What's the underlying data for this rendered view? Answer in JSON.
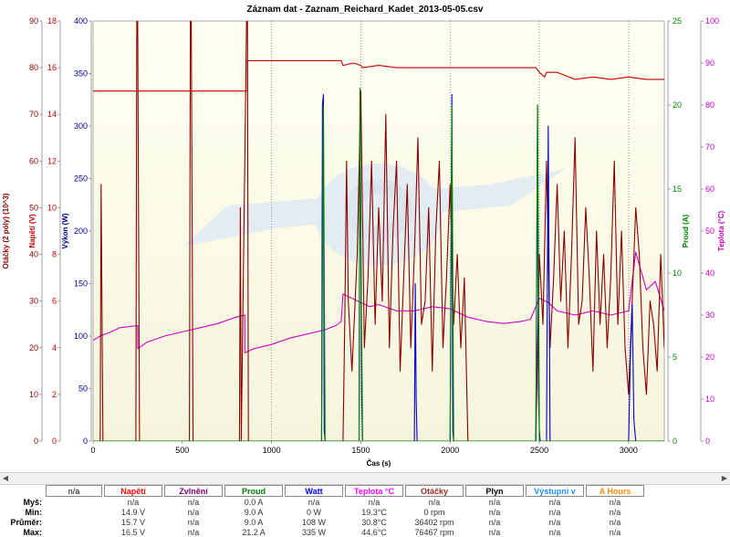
{
  "chart_data": {
    "type": "line",
    "title": "Záznam dat - Zaznam_Reichard_Kadet_2013-05-05.csv",
    "xlabel": "Čas (s)",
    "xlim": [
      0,
      3200
    ],
    "x_ticks": [
      "0",
      "500",
      "1000",
      "1500",
      "2000",
      "2500",
      "3000"
    ],
    "axes": [
      {
        "id": "otacky",
        "label": "Otáčky (2 póly) (10^3)",
        "range": [
          0,
          90
        ],
        "ticks": [
          "0",
          "10",
          "20",
          "30",
          "40",
          "50",
          "60",
          "70",
          "80",
          "90"
        ],
        "color": "#8b0000",
        "side": "left"
      },
      {
        "id": "napeti",
        "label": "Napětí (V)",
        "range": [
          0,
          18
        ],
        "ticks": [
          "0",
          "2",
          "4",
          "6",
          "8",
          "10",
          "12",
          "14",
          "16",
          "18"
        ],
        "color": "#c00000",
        "side": "left"
      },
      {
        "id": "vykon",
        "label": "Výkon (W)",
        "range": [
          0,
          400
        ],
        "ticks": [
          "0",
          "50",
          "100",
          "150",
          "200",
          "250",
          "300",
          "350",
          "400"
        ],
        "color": "#00008b",
        "side": "left"
      },
      {
        "id": "proud",
        "label": "Proud (A)",
        "range": [
          0,
          25
        ],
        "ticks": [
          "0",
          "5",
          "10",
          "15",
          "20",
          "25"
        ],
        "color": "#008000",
        "side": "right"
      },
      {
        "id": "teplota",
        "label": "Teplota (°C)",
        "range": [
          0,
          100
        ],
        "ticks": [
          "0",
          "10",
          "20",
          "30",
          "40",
          "50",
          "60",
          "70",
          "80",
          "90",
          "100"
        ],
        "color": "#c000c0",
        "side": "right"
      }
    ],
    "vertical_gridlines": [
      1000,
      1500,
      2000,
      2500,
      3000
    ],
    "series": [
      {
        "axis": "napeti",
        "color": "#c00000",
        "x": [
          0,
          50,
          50,
          865,
          865,
          880,
          1000,
          1100,
          1200,
          1300,
          1390,
          1400,
          1460,
          1500,
          1510,
          1600,
          1700,
          1800,
          1900,
          2000,
          2100,
          2200,
          2300,
          2400,
          2480,
          2500,
          2530,
          2540,
          2600,
          2700,
          2800,
          2900,
          3000,
          3100,
          3200
        ],
        "y": [
          15.0,
          15.0,
          15.0,
          15.0,
          16.3,
          16.3,
          16.3,
          16.3,
          16.3,
          16.3,
          16.3,
          16.1,
          16.2,
          16.1,
          16.0,
          16.1,
          16.0,
          16.0,
          16.0,
          16.0,
          16.0,
          16.0,
          16.0,
          16.0,
          16.0,
          15.8,
          15.6,
          15.8,
          15.8,
          15.5,
          15.6,
          15.5,
          15.6,
          15.5,
          15.5
        ]
      },
      {
        "axis": "teplota",
        "color": "#cc00cc",
        "x": [
          0,
          40,
          100,
          150,
          250,
          250,
          300,
          400,
          500,
          600,
          700,
          800,
          850,
          850,
          900,
          1000,
          1100,
          1200,
          1300,
          1330,
          1360,
          1390,
          1400,
          1450,
          1500,
          1550,
          1600,
          1700,
          1800,
          1900,
          2000,
          2100,
          2200,
          2300,
          2400,
          2450,
          2500,
          2550,
          2600,
          2700,
          2800,
          2900,
          3000,
          3040,
          3100,
          3150,
          3200
        ],
        "y": [
          24.0,
          25.0,
          26.0,
          27.0,
          27.5,
          22.0,
          23.5,
          25.0,
          26.0,
          27.0,
          28.0,
          29.5,
          30.0,
          21.0,
          22.0,
          23.0,
          24.5,
          25.5,
          26.5,
          27.0,
          27.5,
          28.5,
          35.0,
          34.0,
          33.0,
          32.0,
          32.5,
          31.0,
          31.0,
          32.0,
          31.5,
          29.5,
          28.5,
          28.0,
          28.5,
          29.0,
          34.0,
          33.0,
          31.0,
          30.0,
          31.0,
          30.0,
          31.0,
          45.0,
          36.0,
          38.0,
          31.0
        ]
      },
      {
        "axis": "otacky",
        "color": "#8b0000",
        "x": [
          0,
          40,
          45,
          55,
          60,
          100,
          240,
          245,
          250,
          260,
          540,
          545,
          550,
          560,
          820,
          825,
          830,
          860,
          865,
          870,
          1300,
          1400,
          1410,
          1420,
          1430,
          1450,
          1480,
          1500,
          1520,
          1540,
          1560,
          1580,
          1600,
          1620,
          1640,
          1660,
          1680,
          1700,
          1720,
          1740,
          1760,
          1780,
          1800,
          1820,
          1840,
          1860,
          1880,
          1900,
          1920,
          1940,
          1960,
          1980,
          2000,
          2020,
          2040,
          2060,
          2080,
          2100,
          2480,
          2500,
          2520,
          2540,
          2560,
          2580,
          2600,
          2620,
          2640,
          2660,
          2680,
          2700,
          2720,
          2740,
          2760,
          2780,
          2800,
          2820,
          2840,
          2860,
          2880,
          2900,
          2920,
          2940,
          2960,
          2980,
          3000,
          3040,
          3060,
          3080,
          3100,
          3120,
          3140,
          3160,
          3180,
          3200
        ],
        "y": [
          0,
          0,
          55,
          0,
          0,
          0,
          0,
          90,
          90,
          0,
          0,
          90,
          90,
          0,
          0,
          50,
          0,
          90,
          90,
          0,
          0,
          0,
          25,
          60,
          30,
          15,
          40,
          75,
          20,
          35,
          60,
          25,
          50,
          30,
          70,
          20,
          45,
          60,
          15,
          35,
          55,
          20,
          40,
          65,
          25,
          30,
          50,
          15,
          45,
          60,
          20,
          35,
          55,
          25,
          40,
          20,
          35,
          0,
          0,
          40,
          25,
          60,
          20,
          35,
          55,
          30,
          45,
          20,
          40,
          65,
          25,
          30,
          50,
          35,
          15,
          45,
          25,
          40,
          20,
          35,
          60,
          25,
          45,
          20,
          10,
          50,
          40,
          20,
          10,
          30,
          25,
          15,
          40,
          20
        ]
      },
      {
        "axis": "vykon",
        "color": "#0000cc",
        "x": [
          0,
          1280,
          1285,
          1290,
          1295,
          1300,
          1490,
          1495,
          1500,
          1505,
          1510,
          1800,
          1805,
          1810,
          1815,
          2000,
          2010,
          2015,
          2020,
          2480,
          2490,
          2495,
          2500,
          2505,
          2540,
          2550,
          2560,
          3000,
          3010,
          3020,
          3030,
          3040,
          3200
        ],
        "y": [
          0,
          0,
          320,
          330,
          10,
          0,
          0,
          330,
          200,
          40,
          0,
          0,
          150,
          40,
          0,
          0,
          330,
          10,
          0,
          0,
          320,
          50,
          10,
          0,
          0,
          300,
          0,
          0,
          80,
          130,
          20,
          0,
          0
        ]
      },
      {
        "axis": "proud",
        "color": "#008000",
        "x": [
          0,
          1280,
          1290,
          1300,
          1490,
          1495,
          1500,
          1510,
          2000,
          2010,
          2020,
          2480,
          2490,
          2500,
          3200
        ],
        "y": [
          0,
          0,
          20.0,
          0,
          0,
          21.0,
          12.0,
          0,
          0,
          20.0,
          0,
          0,
          20.0,
          0,
          0
        ]
      }
    ]
  },
  "stats": {
    "columns": [
      {
        "label": "n/a",
        "color": "#000000"
      },
      {
        "label": "Napětí",
        "color": "#ff0000"
      },
      {
        "label": "Zvlnění",
        "color": "#800080"
      },
      {
        "label": "Proud",
        "color": "#008000"
      },
      {
        "label": "Watt",
        "color": "#0000ff"
      },
      {
        "label": "Teplota °C",
        "color": "#ff00ff"
      },
      {
        "label": "Otáčky",
        "color": "#a52a2a"
      },
      {
        "label": "Plyn",
        "color": "#000000"
      },
      {
        "label": "Výstupní v",
        "color": "#1e90ff"
      },
      {
        "label": "A Hours",
        "color": "#ff8c00"
      }
    ],
    "rows": [
      {
        "label": "Myš:",
        "values": [
          "n/a",
          "n/a",
          "0.0 A",
          "n/a",
          "n/a",
          "n/a",
          "n/a",
          "n/a",
          "n/a"
        ]
      },
      {
        "label": "Min:",
        "values": [
          "14.9 V",
          "n/a",
          "9.0 A",
          "0 W",
          "19.3°C",
          "0 rpm",
          "n/a",
          "n/a",
          "n/a"
        ]
      },
      {
        "label": "Průměr:",
        "values": [
          "15.7 V",
          "n/a",
          "9.0 A",
          "108 W",
          "30.8°C",
          "36402 rpm",
          "n/a",
          "n/a",
          "n/a"
        ]
      },
      {
        "label": "Max:",
        "values": [
          "16.5 V",
          "n/a",
          "21.2 A",
          "335 W",
          "44.6°C",
          "76467 rpm",
          "n/a",
          "n/a",
          "n/a"
        ]
      }
    ]
  },
  "scrollbar": {
    "left_arrow": "◀",
    "right_arrow": "▶"
  }
}
